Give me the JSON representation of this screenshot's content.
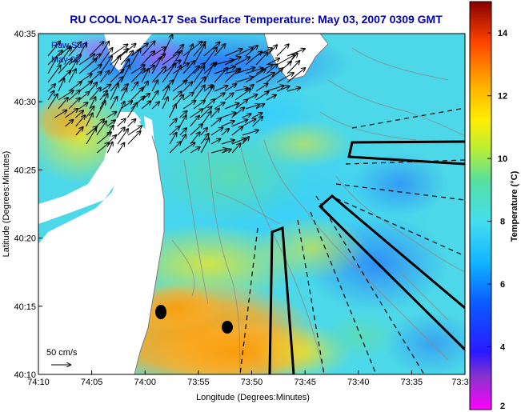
{
  "title": "RU COOL  NOAA-17  Sea Surface Temperature:  May 03, 2007 0309 GMT",
  "overlay": {
    "line1": "Raw Surf",
    "line2": "May 03"
  },
  "scale_label": "50 cm/s",
  "axes": {
    "xlabel": "Longitude (Degrees:Minutes)",
    "ylabel": "Latitude (Degrees:Minutes)",
    "xticks": [
      "74:10",
      "74:05",
      "74:00",
      "73:55",
      "73:50",
      "73:45",
      "73:40",
      "73:35",
      "73:3"
    ],
    "yticks": [
      "40:35",
      "40:30",
      "40:25",
      "40:20",
      "40:15",
      "40:10"
    ]
  },
  "colorbar": {
    "label": "Temperature (°C)",
    "ticks": [
      "14",
      "12",
      "10",
      "8",
      "6",
      "4",
      "2"
    ],
    "min": 2,
    "max": 15
  },
  "colors": {
    "title": "#0000aa",
    "land": "#ffffff",
    "vectors": "#000000",
    "contours": "#8a8a8a"
  }
}
